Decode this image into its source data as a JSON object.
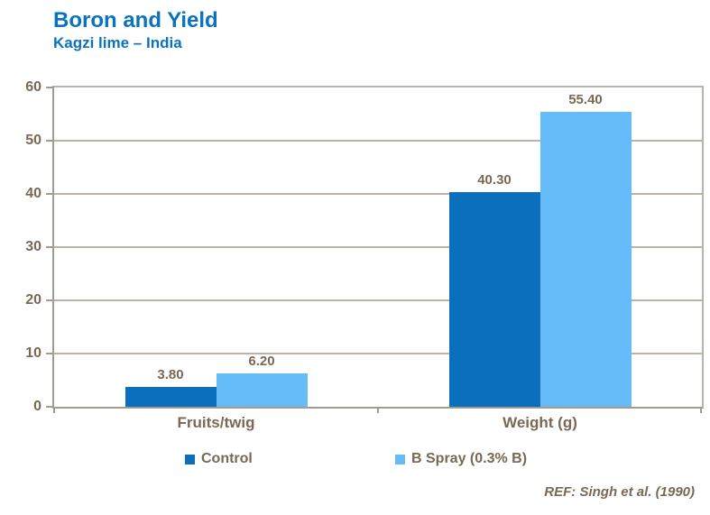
{
  "chart_data": {
    "type": "bar",
    "title": "Boron and Yield",
    "subtitle": "Kagzi lime – India",
    "categories": [
      "Fruits/twig",
      "Weight (g)"
    ],
    "series": [
      {
        "name": "Control",
        "color": "#0A70BE",
        "values": [
          3.8,
          40.3
        ],
        "data_labels": [
          "3.80",
          "40.30"
        ]
      },
      {
        "name": "B Spray (0.3% B)",
        "color": "#66BBF9",
        "values": [
          6.2,
          55.4
        ],
        "data_labels": [
          "6.20",
          "55.40"
        ]
      }
    ],
    "ylim": [
      0,
      60
    ],
    "yticks": [
      "0",
      "10",
      "20",
      "30",
      "40",
      "50",
      "60"
    ],
    "grid": true,
    "legend_position": "bottom",
    "xlabel": "",
    "ylabel": ""
  },
  "footer": {
    "reference": "REF: Singh et al. (1990)"
  },
  "colors": {
    "title_blue": "#0B72BE",
    "control_bar": "#0A70BE",
    "bspray_bar": "#66BBF9",
    "text_brown": "#796954",
    "gridline": "#BBB3A7",
    "axis_line": "#A39B8F"
  }
}
